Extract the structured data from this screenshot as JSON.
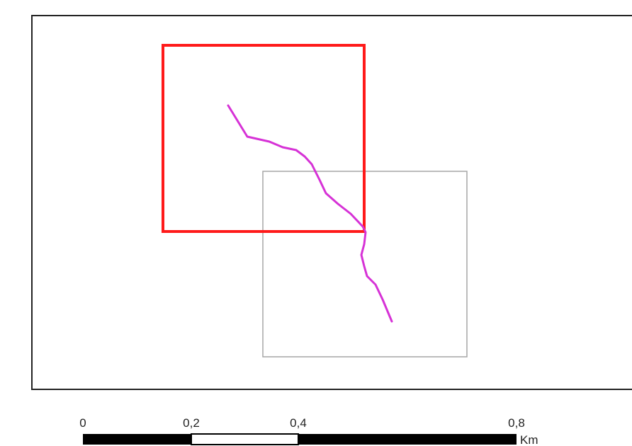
{
  "colors": {
    "frame": "#222222",
    "highlight_box": "#ff1a1a",
    "secondary_box": "#a6a6a6",
    "route_line": "#d632d6",
    "scalebar_dark": "#000000",
    "scalebar_light": "#ffffff"
  },
  "scale_bar": {
    "ticks": [
      "0",
      "0,2",
      "0,4",
      "0,8"
    ],
    "unit": "Km"
  }
}
